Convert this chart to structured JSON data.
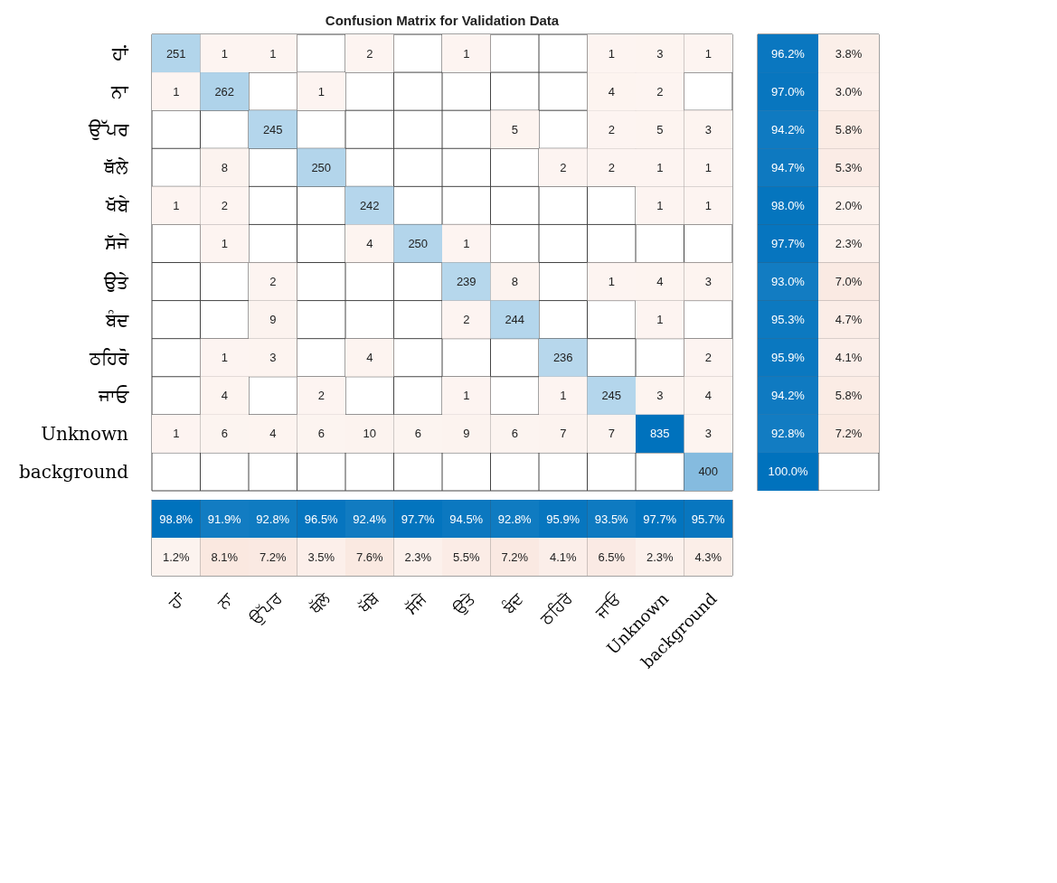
{
  "chart_data": [
    {
      "type": "heatmap",
      "title": "Confusion Matrix for Validation Data",
      "data_labels": true,
      "categories": [
        "ਹਾਂ",
        "ਨਾ",
        "ਉੱਪਰ",
        "ਥੱਲੇ",
        "ਖੱਬੇ",
        "ਸੱਜੇ",
        "ਉਤੇ",
        "ਬੰਦ",
        "ਠਹਿਰੋ",
        "ਜਾਓ",
        "Unknown",
        "background"
      ],
      "y_categories": [
        "ਹਾਂ",
        "ਨਾ",
        "ਉੱਪਰ",
        "ਥੱਲੇ",
        "ਖੱਬੇ",
        "ਸੱਜੇ",
        "ਉਤੇ",
        "ਬੰਦ",
        "ਠਹਿਰੋ",
        "ਜਾਓ",
        "Unknown",
        "background"
      ],
      "cells": [
        [
          251,
          1,
          1,
          null,
          2,
          null,
          1,
          null,
          null,
          1,
          3,
          1
        ],
        [
          1,
          262,
          null,
          1,
          null,
          null,
          null,
          null,
          null,
          4,
          2,
          null
        ],
        [
          null,
          null,
          245,
          null,
          null,
          null,
          null,
          5,
          null,
          2,
          5,
          3
        ],
        [
          null,
          8,
          null,
          250,
          null,
          null,
          null,
          null,
          2,
          2,
          1,
          1
        ],
        [
          1,
          2,
          null,
          null,
          242,
          null,
          null,
          null,
          null,
          null,
          1,
          1
        ],
        [
          null,
          1,
          null,
          null,
          4,
          250,
          1,
          null,
          null,
          null,
          null,
          null
        ],
        [
          null,
          null,
          2,
          null,
          null,
          null,
          239,
          8,
          null,
          1,
          4,
          3
        ],
        [
          null,
          null,
          9,
          null,
          null,
          null,
          2,
          244,
          null,
          null,
          1,
          null
        ],
        [
          null,
          1,
          3,
          null,
          4,
          null,
          null,
          null,
          236,
          null,
          null,
          2
        ],
        [
          null,
          4,
          null,
          2,
          null,
          null,
          1,
          null,
          1,
          245,
          3,
          4
        ],
        [
          1,
          6,
          4,
          6,
          10,
          6,
          9,
          6,
          7,
          7,
          835,
          3
        ],
        [
          null,
          null,
          null,
          null,
          null,
          null,
          null,
          null,
          null,
          null,
          null,
          400
        ]
      ]
    },
    {
      "type": "heatmap",
      "categories": [
        null,
        null
      ],
      "y_categories": [
        null,
        null,
        null,
        null,
        null,
        null,
        null,
        null,
        null,
        null,
        null,
        null
      ],
      "cells": [
        [
          96.2,
          3.8
        ],
        [
          97.0,
          3.0
        ],
        [
          94.2,
          5.8
        ],
        [
          94.7,
          5.3
        ],
        [
          98.0,
          2.0
        ],
        [
          97.7,
          2.3
        ],
        [
          93.0,
          7.0
        ],
        [
          95.3,
          4.7
        ],
        [
          95.9,
          4.1
        ],
        [
          94.2,
          5.8
        ],
        [
          92.8,
          7.2
        ],
        [
          100.0,
          null
        ]
      ],
      "cell_labels": [
        [
          "96.2%",
          "3.8%"
        ],
        [
          "97.0%",
          "3.0%"
        ],
        [
          "94.2%",
          "5.8%"
        ],
        [
          "94.7%",
          "5.3%"
        ],
        [
          "98.0%",
          "2.0%"
        ],
        [
          "97.7%",
          "2.3%"
        ],
        [
          "93.0%",
          "7.0%"
        ],
        [
          "95.3%",
          "4.7%"
        ],
        [
          "95.9%",
          "4.1%"
        ],
        [
          "94.2%",
          "5.8%"
        ],
        [
          "92.8%",
          "7.2%"
        ],
        [
          "100.0%",
          null
        ]
      ]
    },
    {
      "type": "heatmap",
      "categories": [
        null,
        null,
        null,
        null,
        null,
        null,
        null,
        null,
        null,
        null,
        null,
        null
      ],
      "y_categories": [
        null,
        null
      ],
      "cells": [
        [
          98.8,
          91.9,
          92.8,
          96.5,
          92.4,
          97.7,
          94.5,
          92.8,
          95.9,
          93.5,
          97.7,
          95.7
        ],
        [
          1.2,
          8.1,
          7.2,
          3.5,
          7.6,
          2.3,
          5.5,
          7.2,
          4.1,
          6.5,
          2.3,
          4.3
        ]
      ],
      "cell_labels": [
        [
          "98.8%",
          "91.9%",
          "92.8%",
          "96.5%",
          "92.4%",
          "97.7%",
          "94.5%",
          "92.8%",
          "95.9%",
          "93.5%",
          "97.7%",
          "95.7%"
        ],
        [
          "1.2%",
          "8.1%",
          "7.2%",
          "3.5%",
          "7.6%",
          "2.3%",
          "5.5%",
          "7.2%",
          "4.1%",
          "6.5%",
          "2.3%",
          "4.3%"
        ]
      ]
    }
  ]
}
